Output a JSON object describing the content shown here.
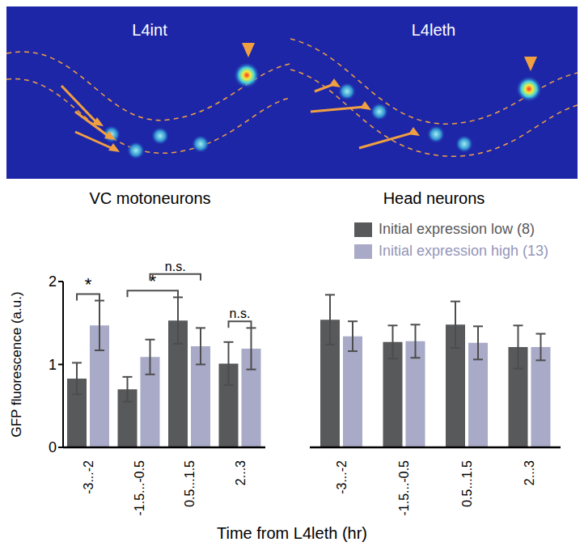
{
  "images": [
    {
      "label": "L4int"
    },
    {
      "label": "L4leth"
    }
  ],
  "xlabel": "Time from L4leth (hr)",
  "chart_data": [
    {
      "type": "bar",
      "title": "VC motoneurons",
      "ylabel": "GFP fluorescence (a.u.)",
      "categories": [
        "-3...-2",
        "-1.5...-0.5",
        "0.5...1.5",
        "2...3"
      ],
      "ylim": [
        0,
        2
      ],
      "yticks": [
        0,
        1,
        2
      ],
      "series": [
        {
          "name": "Initial expression low (8)",
          "color": "#58595b",
          "values": [
            0.83,
            0.7,
            1.53,
            1.01
          ],
          "errors": [
            0.19,
            0.15,
            0.28,
            0.26
          ]
        },
        {
          "name": "Initial expression high (13)",
          "color": "#a8aac8",
          "values": [
            1.47,
            1.09,
            1.22,
            1.19
          ],
          "errors": [
            0.3,
            0.21,
            0.22,
            0.25
          ]
        }
      ],
      "annotations": [
        {
          "text": "*",
          "from": [
            "-3...-2",
            "Initial expression low (8)"
          ],
          "to": [
            "-3...-2",
            "Initial expression high (13)"
          ]
        },
        {
          "text": "*",
          "from": [
            "-1.5...-0.5",
            "Initial expression low (8)"
          ],
          "to": [
            "0.5...1.5",
            "Initial expression low (8)"
          ]
        },
        {
          "text": "n.s.",
          "from": [
            "-1.5...-0.5",
            "Initial expression high (13)"
          ],
          "to": [
            "0.5...1.5",
            "Initial expression high (13)"
          ]
        },
        {
          "text": "n.s.",
          "from": [
            "2...3",
            "Initial expression low (8)"
          ],
          "to": [
            "2...3",
            "Initial expression high (13)"
          ]
        }
      ]
    },
    {
      "type": "bar",
      "title": "Head neurons",
      "categories": [
        "-3...-2",
        "-1.5...-0.5",
        "0.5...1.5",
        "2...3"
      ],
      "ylim": [
        0,
        2
      ],
      "tick_labels": "x",
      "series": [
        {
          "name": "Initial expression low (8)",
          "color": "#58595b",
          "values": [
            1.54,
            1.27,
            1.48,
            1.21
          ],
          "errors": [
            0.3,
            0.2,
            0.28,
            0.26
          ]
        },
        {
          "name": "Initial expression high (13)",
          "color": "#a8aac8",
          "values": [
            1.34,
            1.28,
            1.26,
            1.21
          ],
          "errors": [
            0.18,
            0.2,
            0.2,
            0.16
          ]
        }
      ]
    }
  ]
}
